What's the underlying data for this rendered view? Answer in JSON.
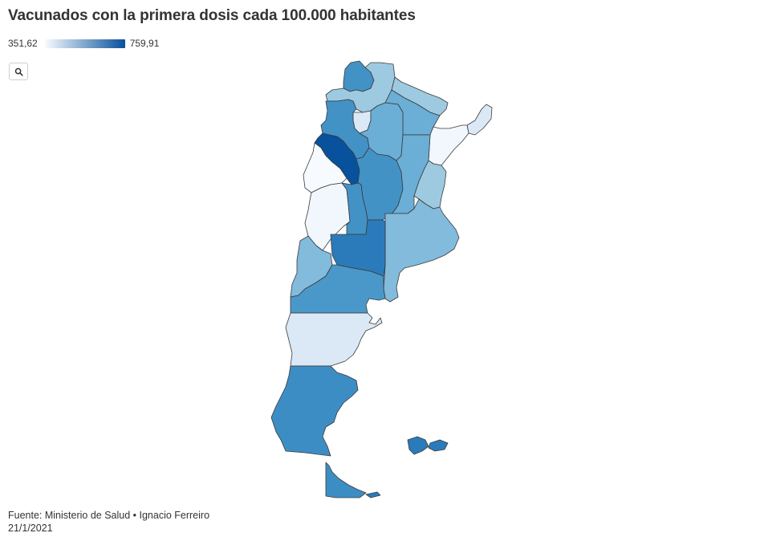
{
  "title": "Vacunados con la primera dosis cada 100.000 habitantes",
  "legend": {
    "min_label": "351,62",
    "max_label": "759,91",
    "min_color": "#f7fbff",
    "max_color": "#08519c"
  },
  "zoom_button": {
    "icon": "search-icon"
  },
  "map": {
    "regions": [
      {
        "id": "jujuy",
        "fill": "#4292c6"
      },
      {
        "id": "salta",
        "fill": "#9ecae1"
      },
      {
        "id": "formosa",
        "fill": "#9ecae1"
      },
      {
        "id": "chaco",
        "fill": "#6baed6"
      },
      {
        "id": "misiones",
        "fill": "#dbe9f6"
      },
      {
        "id": "tucuman",
        "fill": "#dbe9f6"
      },
      {
        "id": "catamarca",
        "fill": "#4292c6"
      },
      {
        "id": "santiago-del-estero",
        "fill": "#6baed6"
      },
      {
        "id": "corrientes",
        "fill": "#f2f7fd"
      },
      {
        "id": "la-rioja",
        "fill": "#08519c"
      },
      {
        "id": "san-juan",
        "fill": "#f7fbff"
      },
      {
        "id": "cordoba",
        "fill": "#4292c6"
      },
      {
        "id": "santa-fe",
        "fill": "#6baed6"
      },
      {
        "id": "entre-rios",
        "fill": "#9ecae1"
      },
      {
        "id": "mendoza",
        "fill": "#f2f7fd"
      },
      {
        "id": "san-luis",
        "fill": "#4292c6"
      },
      {
        "id": "buenos-aires",
        "fill": "#82bbdb"
      },
      {
        "id": "la-pampa",
        "fill": "#2b7bba"
      },
      {
        "id": "neuquen",
        "fill": "#82bbdb"
      },
      {
        "id": "rio-negro",
        "fill": "#4a98c9"
      },
      {
        "id": "chubut",
        "fill": "#dbe9f6"
      },
      {
        "id": "santa-cruz",
        "fill": "#3d8dc5"
      },
      {
        "id": "tierra-del-fuego",
        "fill": "#3d8dc5"
      }
    ]
  },
  "footer": {
    "source": "Fuente: Ministerio de Salud • Ignacio Ferreiro",
    "date": "21/1/2021"
  }
}
